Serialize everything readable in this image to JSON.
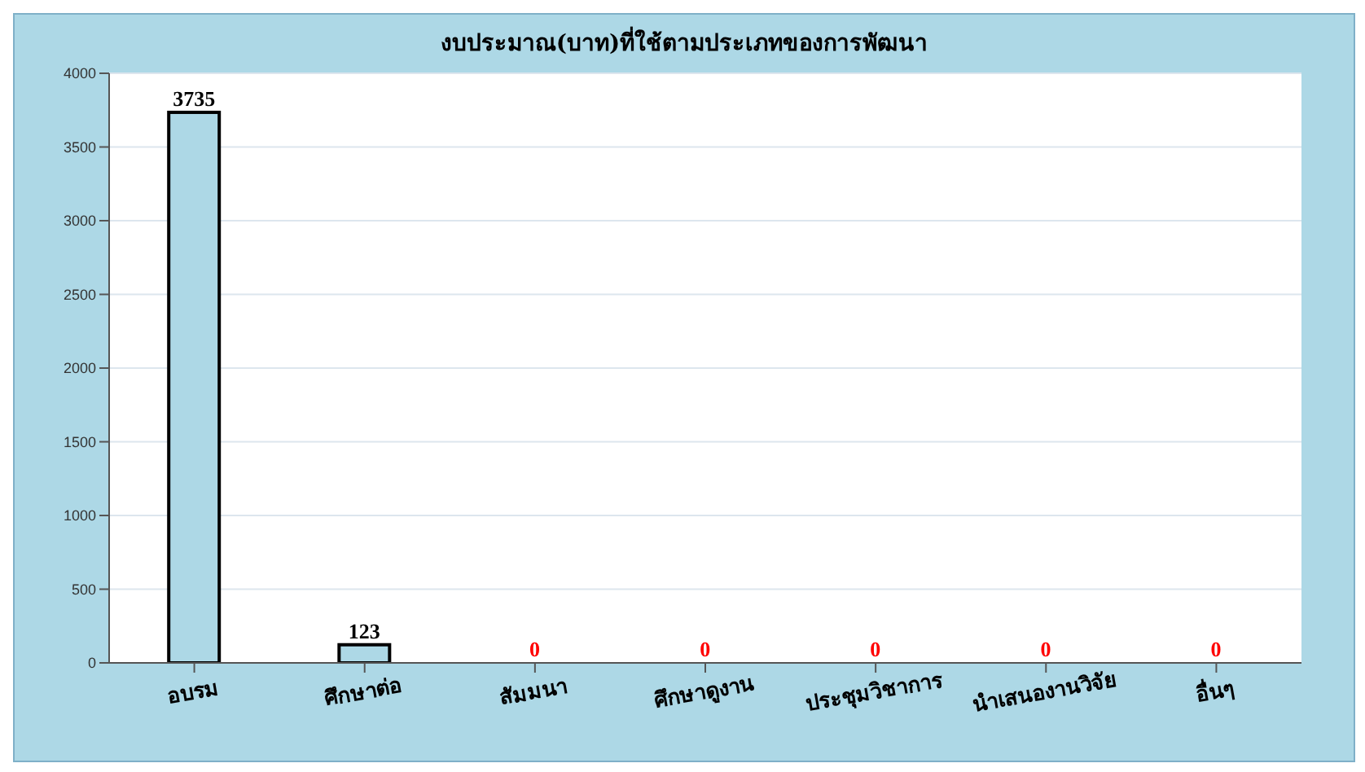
{
  "chart_data": {
    "type": "bar",
    "title": "งบประมาณ(บาท)ที่ใช้ตามประเภทของการพัฒนา",
    "categories": [
      "อบรม",
      "ศึกษาต่อ",
      "สัมมนา",
      "ศึกษาดูงาน",
      "ประชุมวิชาการ",
      "นำเสนองานวิจัย",
      "อื่นๆ"
    ],
    "values": [
      3735,
      123,
      0,
      0,
      0,
      0,
      0
    ],
    "color": "#add8e6",
    "ylim": [
      0,
      4000
    ],
    "yticks": [
      0,
      500,
      1000,
      1500,
      2000,
      2500,
      3000,
      3500,
      4000
    ],
    "grid": "y",
    "data_labels": true
  }
}
